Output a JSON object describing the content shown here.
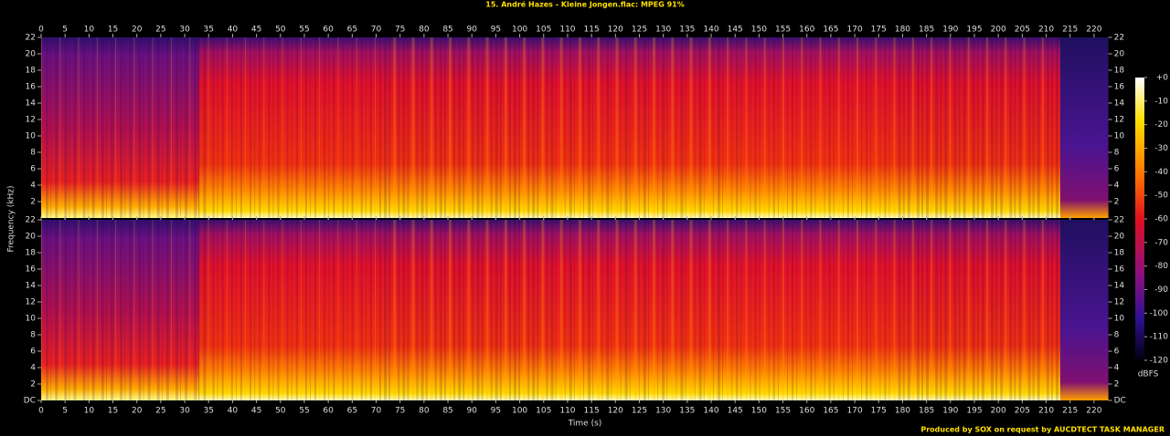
{
  "chart_data": {
    "type": "spectrogram",
    "title": "15. André Hazes - Kleine Jongen.flac: MPEG 91%",
    "x_label": "Time (s)",
    "y_label": "Frequency (kHz)",
    "xlim": [
      0,
      223
    ],
    "xticks": [
      0,
      5,
      10,
      15,
      20,
      25,
      30,
      35,
      40,
      45,
      50,
      55,
      60,
      65,
      70,
      75,
      80,
      85,
      90,
      95,
      100,
      105,
      110,
      115,
      120,
      125,
      130,
      135,
      140,
      145,
      150,
      155,
      160,
      165,
      170,
      175,
      180,
      185,
      190,
      195,
      200,
      205,
      210,
      215,
      220
    ],
    "ylim": [
      0,
      22
    ],
    "yticks": [
      {
        "value": 0,
        "label": "DC"
      },
      2,
      4,
      6,
      8,
      10,
      12,
      14,
      16,
      18,
      20,
      22
    ],
    "colorbar_label": "dBFS",
    "clim": [
      -120,
      0
    ],
    "cticks": [
      {
        "value": 0,
        "label": "+0"
      },
      -10,
      -20,
      -30,
      -40,
      -50,
      -60,
      -70,
      -80,
      -90,
      -100,
      -110,
      -120
    ],
    "footer": "Produced by SOX on request by AUCDTECT TASK MANAGER"
  }
}
